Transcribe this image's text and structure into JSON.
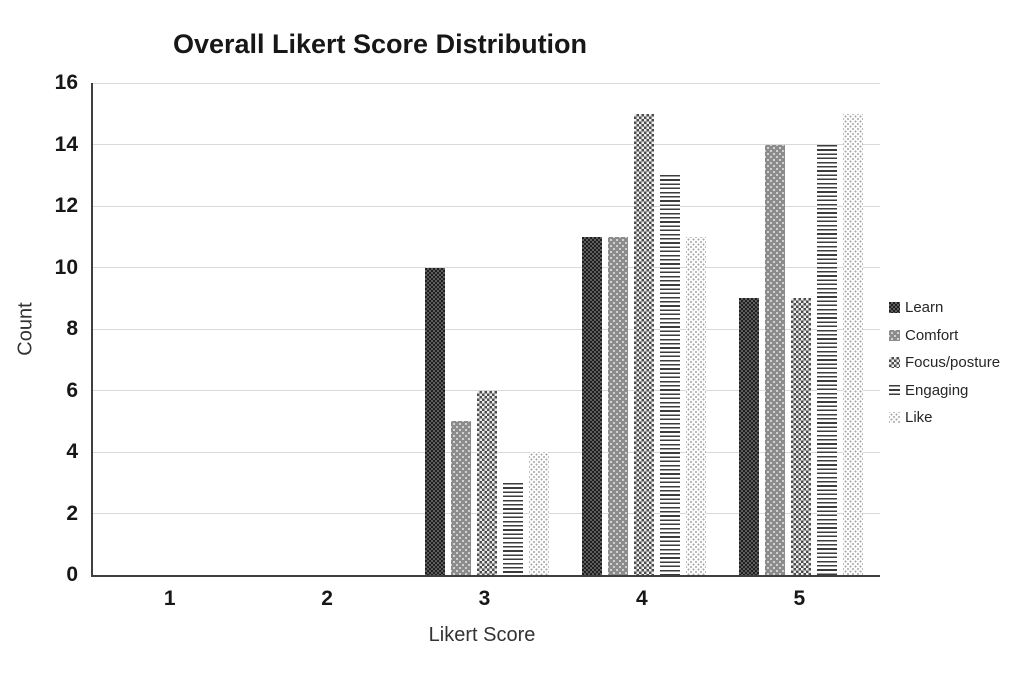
{
  "chart_data": {
    "type": "bar",
    "title": "Overall Likert Score Distribution",
    "xlabel": "Likert Score",
    "ylabel": "Count",
    "categories": [
      "1",
      "2",
      "3",
      "4",
      "5"
    ],
    "series": [
      {
        "name": "Learn",
        "values": [
          0,
          0,
          10,
          11,
          9
        ],
        "swatch": "dark-checker"
      },
      {
        "name": "Comfort",
        "values": [
          0,
          0,
          5,
          11,
          14
        ],
        "swatch": "gray-dots"
      },
      {
        "name": "Focus/posture",
        "values": [
          0,
          0,
          6,
          15,
          9
        ],
        "swatch": "dark-weave"
      },
      {
        "name": "Engaging",
        "values": [
          0,
          0,
          3,
          13,
          14
        ],
        "swatch": "horizontal-lines"
      },
      {
        "name": "Like",
        "values": [
          0,
          0,
          4,
          11,
          15
        ],
        "swatch": "light-dots"
      }
    ],
    "ylim": [
      0,
      16
    ],
    "yticks": [
      0,
      2,
      4,
      6,
      8,
      10,
      12,
      14,
      16
    ],
    "grid": true,
    "legend_position": "right",
    "colors": {
      "gridline": "#d9d9d9",
      "axis_line": "#3f3f3f",
      "text": "#171717"
    }
  }
}
